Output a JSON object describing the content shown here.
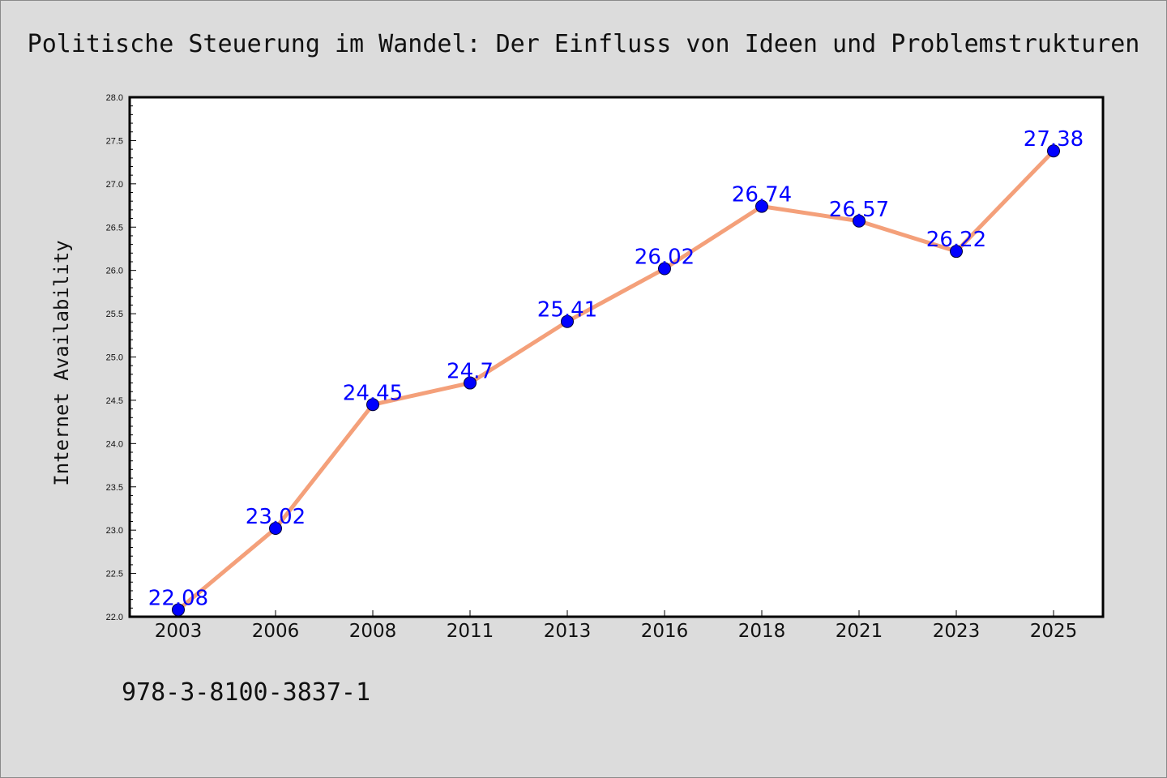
{
  "chart_data": {
    "type": "line",
    "title": "Politische Steuerung im Wandel: Der Einfluss von Ideen und Problemstrukturen",
    "xlabel": "",
    "ylabel": "Internet Availability",
    "categories": [
      "2003",
      "2006",
      "2008",
      "2011",
      "2013",
      "2016",
      "2018",
      "2021",
      "2023",
      "2025"
    ],
    "values": [
      22.08,
      23.02,
      24.45,
      24.7,
      25.41,
      26.02,
      26.74,
      26.57,
      26.22,
      27.38
    ],
    "ylim": [
      22.0,
      28.0
    ],
    "yticks": [
      "22.0",
      "22.5",
      "23.0",
      "23.5",
      "24.0",
      "24.5",
      "25.0",
      "25.5",
      "26.0",
      "26.5",
      "27.0",
      "27.5",
      "28.0"
    ],
    "grid": false,
    "line_color": "#f4a07a",
    "marker_color": "#0000ff",
    "label_color": "#0000ff"
  },
  "footer": {
    "isbn": "978-3-8100-3837-1"
  }
}
